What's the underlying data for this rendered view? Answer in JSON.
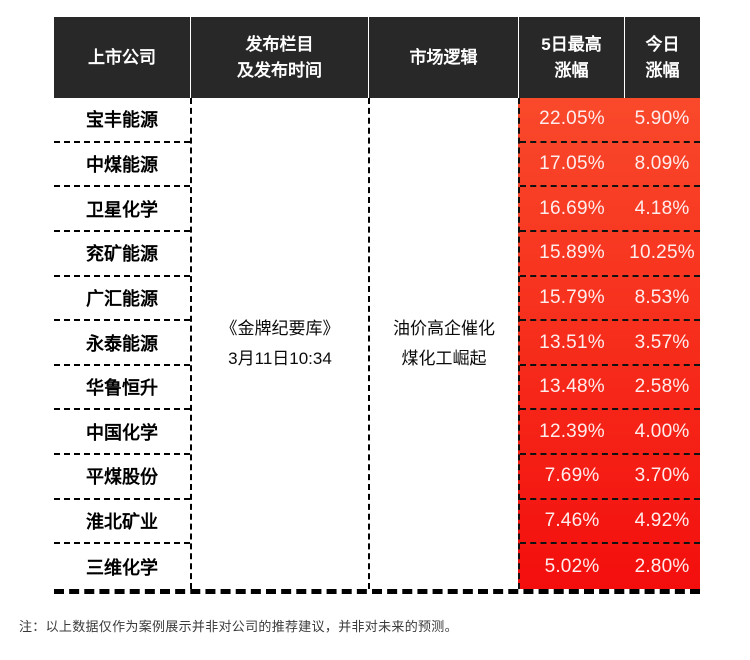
{
  "table": {
    "headers": {
      "company": "上市公司",
      "publish": "发布栏目\n及发布时间",
      "logic": "市场逻辑",
      "high5": "5日最高\n涨幅",
      "today": "今日\n涨幅"
    },
    "publish_cell": "《金牌纪要库》\n3月11日10:34",
    "logic_cell": "油价高企催化\n煤化工崛起",
    "rows": [
      {
        "company": "宝丰能源",
        "high5": "22.05%",
        "today": "5.90%"
      },
      {
        "company": "中煤能源",
        "high5": "17.05%",
        "today": "8.09%"
      },
      {
        "company": "卫星化学",
        "high5": "16.69%",
        "today": "4.18%"
      },
      {
        "company": "兖矿能源",
        "high5": "15.89%",
        "today": "10.25%"
      },
      {
        "company": "广汇能源",
        "high5": "15.79%",
        "today": "8.53%"
      },
      {
        "company": "永泰能源",
        "high5": "13.51%",
        "today": "3.57%"
      },
      {
        "company": "华鲁恒升",
        "high5": "13.48%",
        "today": "2.58%"
      },
      {
        "company": "中国化学",
        "high5": "12.39%",
        "today": "4.00%"
      },
      {
        "company": "平煤股份",
        "high5": "7.69%",
        "today": "3.70%"
      },
      {
        "company": "淮北矿业",
        "high5": "7.46%",
        "today": "4.92%"
      },
      {
        "company": "三维化学",
        "high5": "5.02%",
        "today": "2.80%"
      }
    ]
  },
  "footnote": "注：以上数据仅作为案例展示并非对公司的推荐建议，并非对未来的预测。",
  "colors": {
    "header_bg": "#282828",
    "red_gradient_top": "#f9492b",
    "red_gradient_bottom": "#f30e0d",
    "percent_text": "#ffecec"
  },
  "chart_data": {
    "type": "table",
    "title": "",
    "columns": [
      "上市公司",
      "发布栏目及发布时间",
      "市场逻辑",
      "5日最高涨幅",
      "今日涨幅"
    ],
    "categories": [
      "宝丰能源",
      "中煤能源",
      "卫星化学",
      "兖矿能源",
      "广汇能源",
      "永泰能源",
      "华鲁恒升",
      "中国化学",
      "平煤股份",
      "淮北矿业",
      "三维化学"
    ],
    "series": [
      {
        "name": "5日最高涨幅(%)",
        "values": [
          22.05,
          17.05,
          16.69,
          15.89,
          15.79,
          13.51,
          13.48,
          12.39,
          7.69,
          7.46,
          5.02
        ]
      },
      {
        "name": "今日涨幅(%)",
        "values": [
          5.9,
          8.09,
          4.18,
          10.25,
          8.53,
          3.57,
          2.58,
          4.0,
          3.7,
          4.92,
          2.8
        ]
      }
    ],
    "merged_cells": {
      "发布栏目及发布时间": "《金牌纪要库》 3月11日10:34",
      "市场逻辑": "油价高企催化煤化工崛起"
    },
    "note": "注：以上数据仅作为案例展示并非对公司的推荐建议，并非对未来的预测。"
  }
}
